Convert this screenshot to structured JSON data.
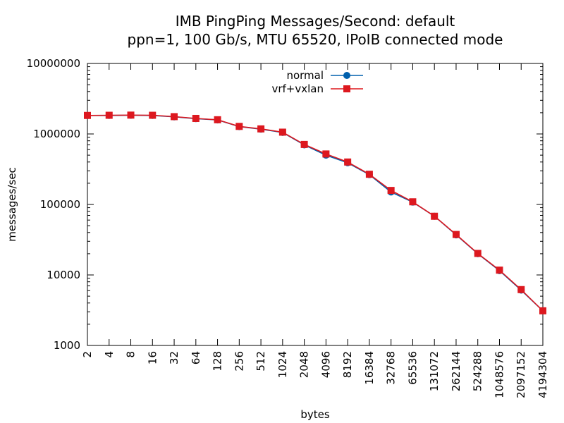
{
  "chart_data": {
    "type": "line",
    "title": "IMB PingPing Messages/Second: default",
    "subtitle": "ppn=1, 100 Gb/s, MTU 65520, IPoIB connected mode",
    "xlabel": "bytes",
    "ylabel": "messages/sec",
    "x_scale": "log",
    "y_scale": "log",
    "xlim": [
      2,
      4194304
    ],
    "ylim": [
      1000,
      10000000
    ],
    "grid": false,
    "legend_position": "top-center",
    "x": [
      2,
      4,
      8,
      16,
      32,
      64,
      128,
      256,
      512,
      1024,
      2048,
      4096,
      8192,
      16384,
      32768,
      65536,
      131072,
      262144,
      524288,
      1048576,
      2097152,
      4194304
    ],
    "x_tick_labels": [
      "2",
      "4",
      "8",
      "16",
      "32",
      "64",
      "128",
      "256",
      "512",
      "1024",
      "2048",
      "4096",
      "8192",
      "16384",
      "32768",
      "65536",
      "131072",
      "262144",
      "524288",
      "1048576",
      "2097152",
      "4194304"
    ],
    "y_ticks": [
      1000,
      10000,
      100000,
      1000000,
      10000000
    ],
    "y_tick_labels": [
      "1000",
      "10000",
      "100000",
      "1000000",
      "10000000"
    ],
    "series": [
      {
        "name": "normal",
        "color": "#0060ad",
        "marker": "circle",
        "values": [
          1830000,
          1830000,
          1840000,
          1830000,
          1750000,
          1650000,
          1580000,
          1270000,
          1170000,
          1050000,
          700000,
          500000,
          390000,
          265000,
          150000,
          108000,
          68000,
          37000,
          20000,
          11500,
          6100,
          3100
        ]
      },
      {
        "name": "vrf+vxlan",
        "color": "#dd181f",
        "marker": "square",
        "values": [
          1830000,
          1840000,
          1850000,
          1840000,
          1760000,
          1660000,
          1590000,
          1280000,
          1180000,
          1060000,
          710000,
          520000,
          400000,
          268000,
          158000,
          109000,
          68000,
          37500,
          20200,
          11700,
          6200,
          3100
        ]
      }
    ]
  }
}
